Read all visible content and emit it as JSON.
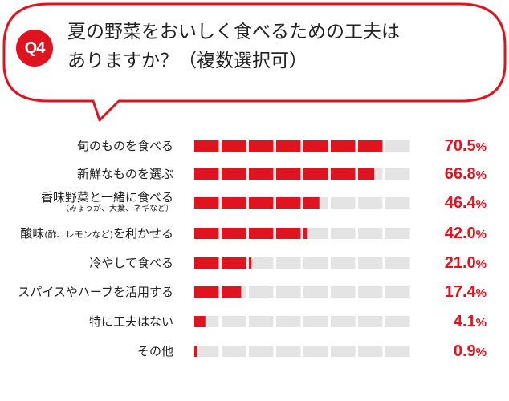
{
  "question": {
    "badge": "Q4",
    "line1": "夏の野菜をおいしく食べるための工夫は",
    "line2": "ありますか？（複数選択可）"
  },
  "colors": {
    "accent": "#e0141e",
    "track": "#e4e4e4"
  },
  "chart_data": {
    "type": "bar",
    "orientation": "horizontal",
    "categories": [
      "旬のものを食べる",
      "新鮮なものを選ぶ",
      "香味野菜と一緒に食べる",
      "酸味(酢、レモンなど)を利かせる",
      "冷やして食べる",
      "スパイスやハーブを活用する",
      "特に工夫はない",
      "その他"
    ],
    "sublabels": [
      "",
      "",
      "（みょうが、大葉、ネギなど）",
      "",
      "",
      "",
      "",
      ""
    ],
    "labels_main": [
      "旬のものを食べる",
      "新鮮なものを選ぶ",
      "香味野菜と一緒に食べる",
      "酸味",
      "冷やして食べる",
      "スパイスやハーブを活用する",
      "特に工夫はない",
      "その他"
    ],
    "labels_inline_small": [
      "",
      "",
      "",
      "(酢、レモンなど)",
      "",
      "",
      "",
      ""
    ],
    "labels_tail": [
      "",
      "",
      "",
      "を利かせる",
      "",
      "",
      "",
      ""
    ],
    "values": [
      70.5,
      66.8,
      46.4,
      42.0,
      21.0,
      17.4,
      4.1,
      0.9
    ],
    "value_labels": [
      "70.5",
      "66.8",
      "46.4",
      "42.0",
      "21.0",
      "17.4",
      "4.1",
      "0.9"
    ],
    "unit": "%",
    "xlim": [
      0,
      80
    ]
  }
}
